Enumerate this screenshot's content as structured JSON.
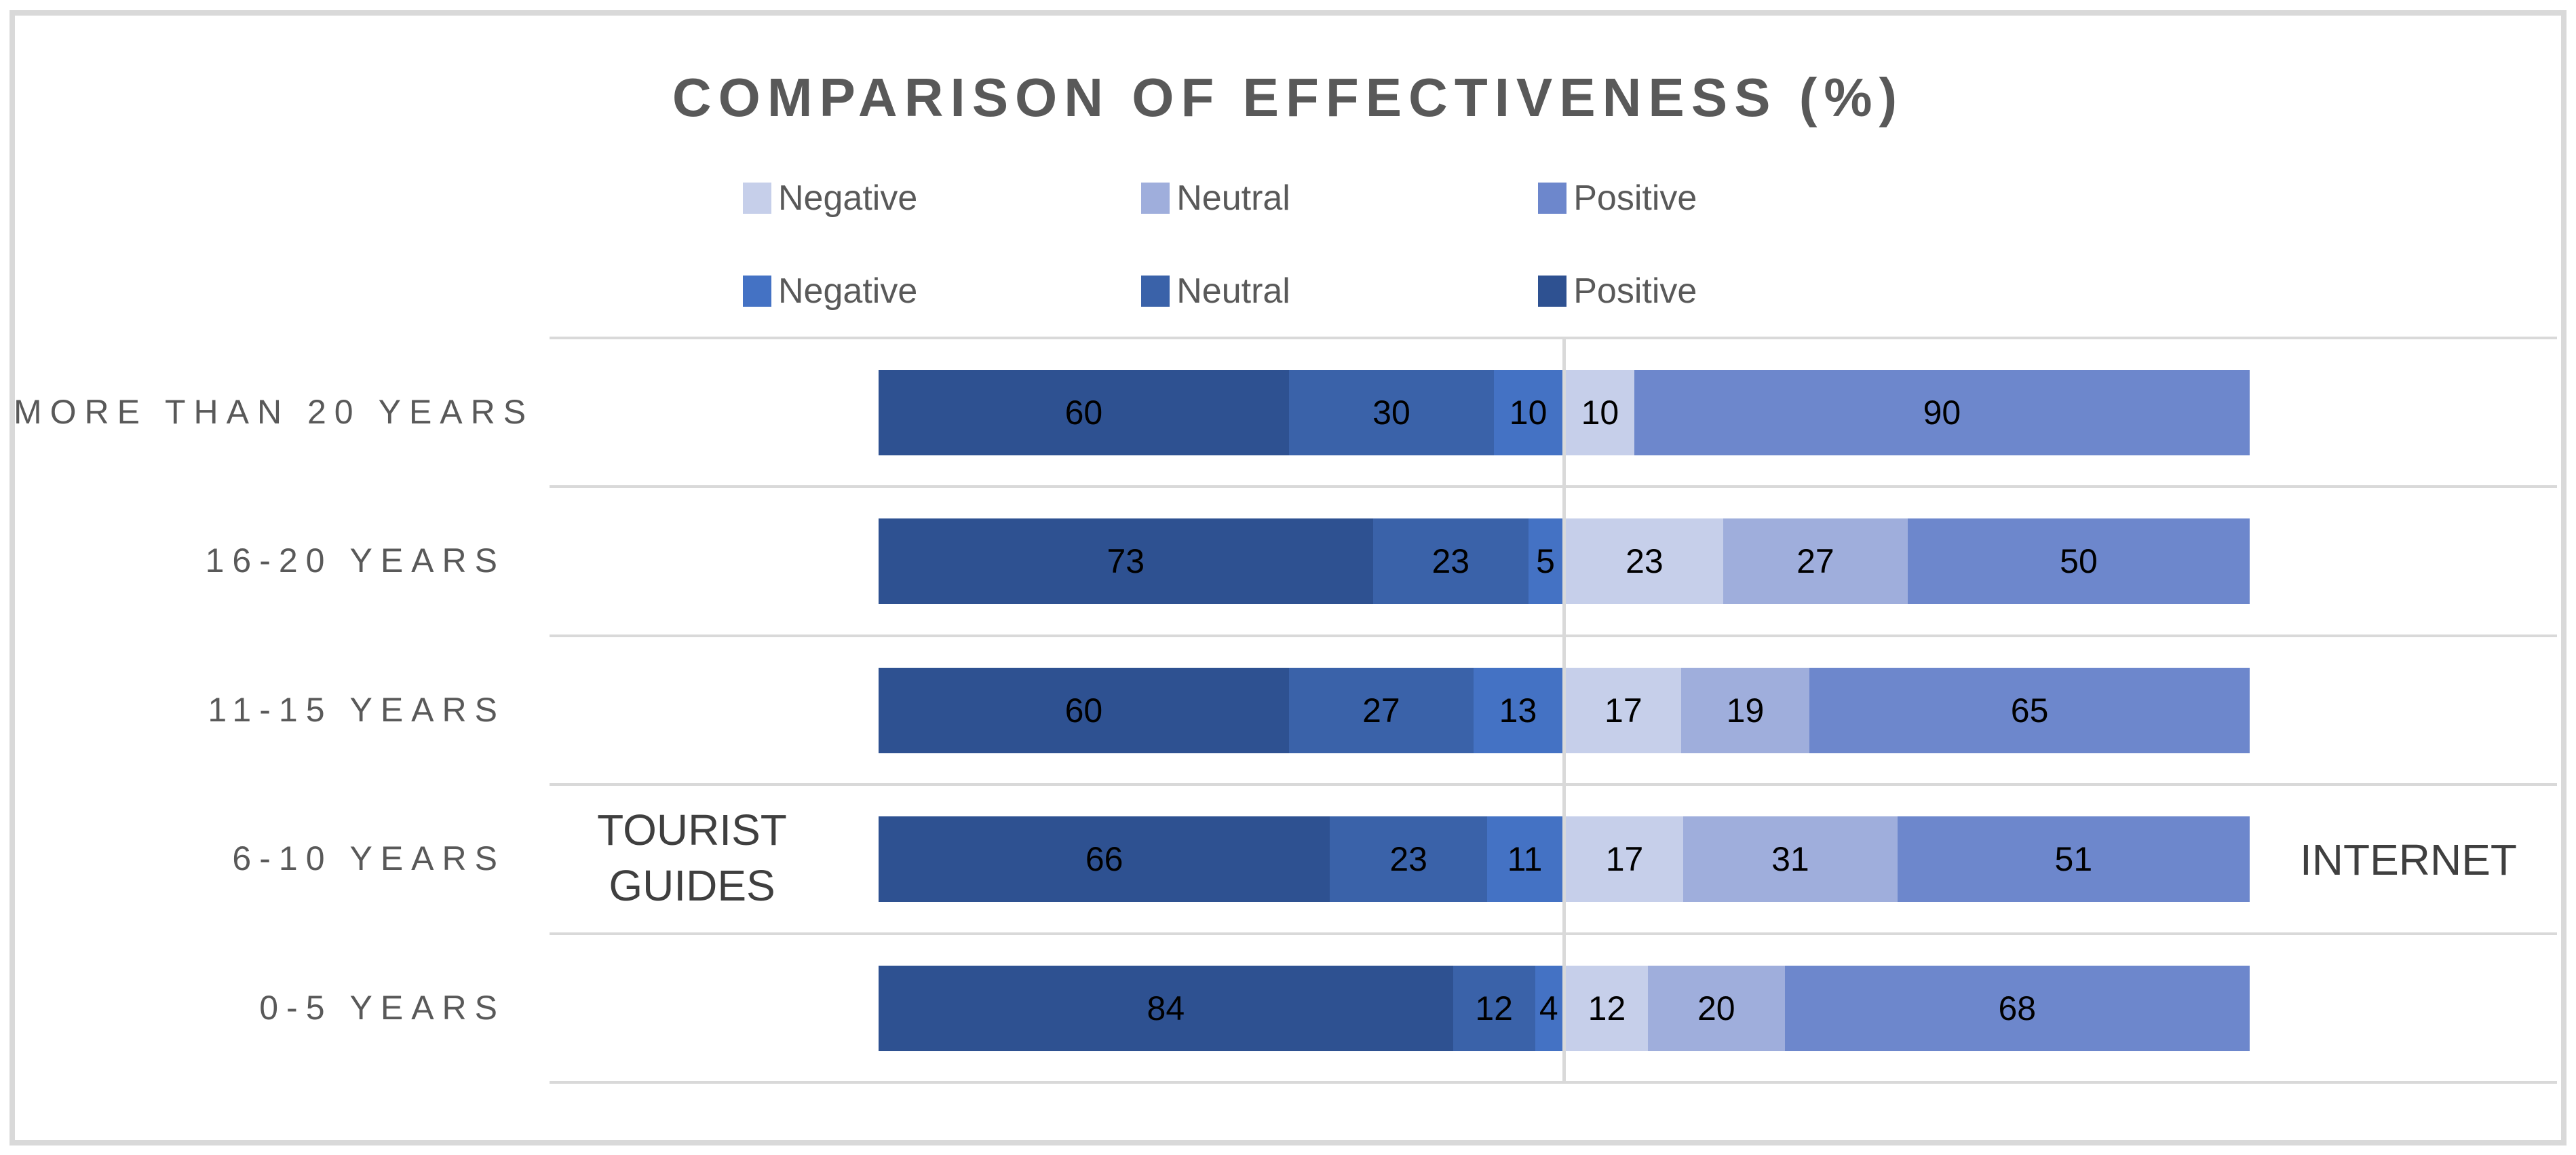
{
  "frame": {
    "border_color": "#D9D9D9"
  },
  "title": {
    "text": "COMPARISON OF EFFECTIVENESS (%)",
    "color": "#595959"
  },
  "legend": {
    "text_color": "#595959",
    "rows": [
      {
        "items": [
          {
            "label": "Negative",
            "color": "#C6CFEA"
          },
          {
            "label": "Neutral",
            "color": "#9FAEDC"
          },
          {
            "label": "Positive",
            "color": "#6D87CC"
          }
        ]
      },
      {
        "items": [
          {
            "label": "Negative",
            "color": "#4472C4"
          },
          {
            "label": "Neutral",
            "color": "#3A62A9"
          },
          {
            "label": "Positive",
            "color": "#2E5191"
          }
        ]
      }
    ]
  },
  "axis_titles": {
    "left": "TOURIST GUIDES",
    "left_line1": "TOURIST",
    "left_line2": "GUIDES",
    "right": "INTERNET"
  },
  "chart_data": {
    "type": "bar",
    "subtype": "diverging-100pct-stacked-horizontal",
    "title": "COMPARISON OF EFFECTIVENESS (%)",
    "categories": [
      "MORE THAN 20 YEARS",
      "16-20 YEARS",
      "11-15 YEARS",
      "6-10 YEARS",
      "0-5 YEARS"
    ],
    "left_group": "TOURIST GUIDES",
    "right_group": "INTERNET",
    "axis_range_each_side": [
      0,
      100
    ],
    "gridline_color": "#D9D9D9",
    "data_labels": true,
    "legend_position": "top",
    "series": [
      {
        "name": "Tourist Guides Positive",
        "side": "left",
        "color": "#2E5191",
        "values": [
          60,
          73,
          60,
          66,
          84
        ]
      },
      {
        "name": "Tourist Guides Neutral",
        "side": "left",
        "color": "#3A62A9",
        "values": [
          30,
          23,
          27,
          23,
          12
        ]
      },
      {
        "name": "Tourist Guides Negative",
        "side": "left",
        "color": "#4472C4",
        "values": [
          10,
          5,
          13,
          11,
          4
        ]
      },
      {
        "name": "Internet Negative",
        "side": "right",
        "color": "#C6CFEA",
        "values": [
          10,
          23,
          17,
          17,
          12
        ]
      },
      {
        "name": "Internet Neutral",
        "side": "right",
        "color": "#9FAEDC",
        "values": [
          0,
          27,
          19,
          31,
          20
        ]
      },
      {
        "name": "Internet Positive",
        "side": "right",
        "color": "#6D87CC",
        "values": [
          90,
          50,
          65,
          51,
          68
        ]
      }
    ]
  }
}
